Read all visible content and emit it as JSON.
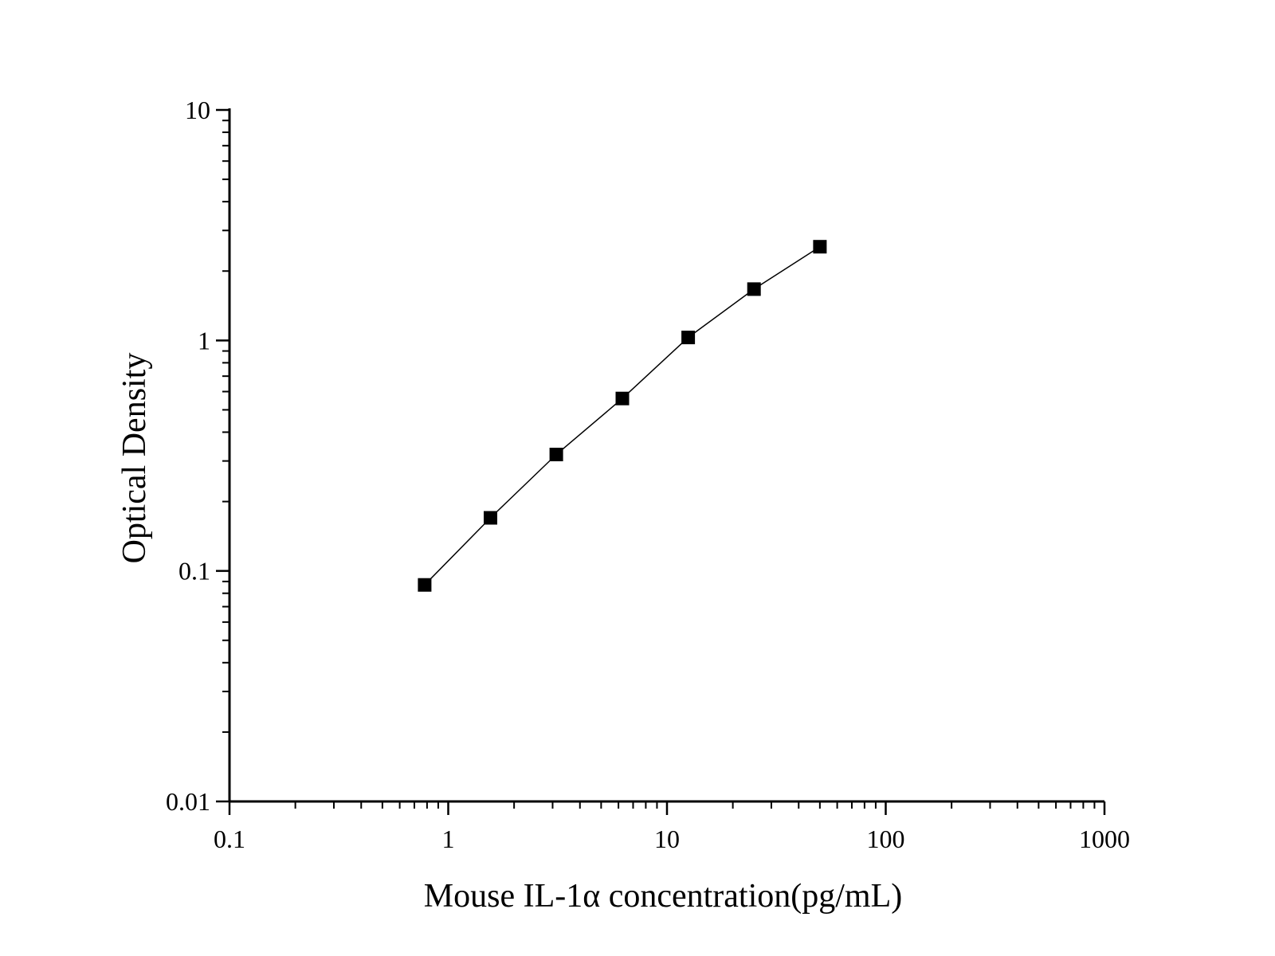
{
  "chart_data": {
    "type": "scatter",
    "title": "",
    "xlabel": "Mouse IL-1α concentration(pg/mL)",
    "ylabel": "Optical Density",
    "x_scale": "log",
    "y_scale": "log",
    "xlim": [
      0.1,
      1000
    ],
    "ylim": [
      0.01,
      10
    ],
    "x_ticks": [
      0.1,
      1,
      10,
      100,
      1000
    ],
    "x_tick_labels": [
      "0.1",
      "1",
      "10",
      "100",
      "1000"
    ],
    "y_ticks": [
      0.01,
      0.1,
      1,
      10
    ],
    "y_tick_labels": [
      "0.01",
      "0.1",
      "1",
      "10"
    ],
    "grid": false,
    "legend": "none",
    "series": [
      {
        "marker": "square",
        "connected": true,
        "color": "#000000",
        "x": [
          0.78,
          1.56,
          3.12,
          6.25,
          12.5,
          25,
          50
        ],
        "y": [
          0.087,
          0.17,
          0.32,
          0.56,
          1.03,
          1.67,
          2.55
        ]
      }
    ]
  }
}
